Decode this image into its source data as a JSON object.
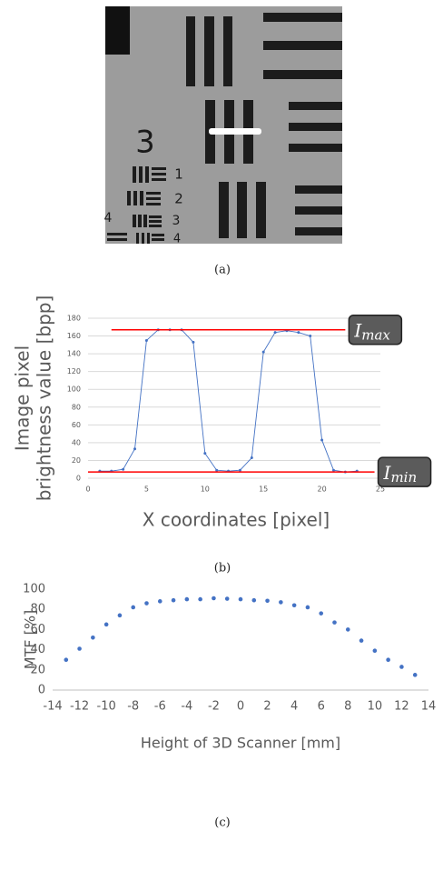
{
  "captions": [
    "(a)",
    "(b)",
    "(c)"
  ],
  "image_labels": [
    "3",
    "1",
    "2",
    "3",
    "4",
    "4"
  ],
  "chart_data": [
    {
      "type": "line",
      "ylabel": [
        "Image pixel",
        "brightness value [bpp]"
      ],
      "xlabel": "X coordinates [pixel]",
      "x": [
        1,
        2,
        3,
        4,
        5,
        6,
        7,
        8,
        9,
        10,
        11,
        12,
        13,
        14,
        15,
        16,
        17,
        18,
        19,
        20,
        21,
        22,
        23
      ],
      "series": [
        {
          "color": "#4472c4",
          "values": [
            8,
            8,
            10,
            33,
            155,
            167,
            167,
            167,
            153,
            28,
            9,
            8,
            9,
            23,
            142,
            164,
            166,
            164,
            160,
            43,
            9,
            7,
            8
          ]
        }
      ],
      "xlim": [
        0,
        25
      ],
      "xticks": [
        0,
        5,
        10,
        15,
        20,
        25
      ],
      "ylim": [
        0,
        180
      ],
      "yticks": [
        0,
        20,
        40,
        60,
        80,
        100,
        120,
        140,
        160,
        180
      ],
      "grid": true,
      "hlines": [
        {
          "value": 167,
          "xrange": [
            2,
            22
          ],
          "color": "#ff0000",
          "text": "I",
          "sub": "max"
        },
        {
          "value": 7,
          "xrange": [
            0,
            24.5
          ],
          "color": "#ff0000",
          "text": "I",
          "sub": "min"
        }
      ]
    },
    {
      "type": "scatter",
      "ylabel": [
        "MTF [%]"
      ],
      "xlabel": "Height of 3D Scanner [mm]",
      "x": [
        -13,
        -12,
        -11,
        -10,
        -9,
        -8,
        -7,
        -6,
        -5,
        -4,
        -3,
        -2,
        -1,
        0,
        1,
        2,
        3,
        4,
        5,
        6,
        7,
        8,
        9,
        10,
        11,
        12,
        13
      ],
      "series": [
        {
          "color": "#4472c4",
          "values": [
            30,
            41,
            52,
            65,
            74,
            82,
            86,
            88,
            89,
            90,
            90,
            91,
            90.5,
            90,
            89,
            88.5,
            87,
            84,
            82,
            76,
            67,
            60,
            49,
            39,
            30,
            23,
            15
          ]
        }
      ],
      "xlim": [
        -14,
        14
      ],
      "xticks": [
        -14,
        -12,
        -10,
        -8,
        -6,
        -4,
        -2,
        0,
        2,
        4,
        6,
        8,
        10,
        12,
        14
      ],
      "ylim": [
        0,
        100
      ],
      "yticks": [
        0,
        20,
        40,
        60,
        80,
        100
      ],
      "grid": false
    }
  ]
}
